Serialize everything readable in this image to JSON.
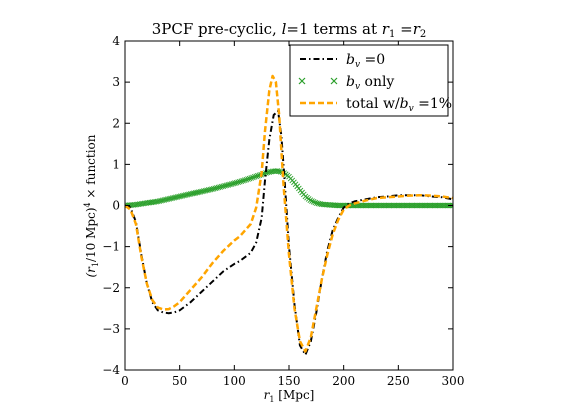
{
  "chart_data": {
    "type": "line",
    "title_prefix": "3PCF pre-cyclic, ",
    "title_math": "l",
    "title_mid": "=1 terms at ",
    "title_math2": "r",
    "title_sub2": "1",
    "title_eq": " =",
    "title_math3": "r",
    "title_sub3": "2",
    "xlabel_math": "r",
    "xlabel_sub": "1",
    "xlabel_rest": " [Mpc]",
    "ylabel_math": "(r",
    "ylabel_sub": "1",
    "ylabel_mid": "/10  Mpc)",
    "ylabel_sup": "4",
    "ylabel_rest": " × function",
    "xlim": [
      0,
      300
    ],
    "ylim": [
      -4,
      4
    ],
    "xticks": [
      0,
      50,
      100,
      150,
      200,
      250,
      300
    ],
    "yticks": [
      -4,
      -3,
      -2,
      -1,
      0,
      1,
      2,
      3,
      4
    ],
    "grid": false,
    "legend_position": "top-right",
    "colors": {
      "bv0": "#000000",
      "bv_only": "#2ca02c",
      "total": "#ffa500"
    },
    "legend": [
      {
        "key": "bv0",
        "math": "b",
        "sub": "v",
        "rest": " =0",
        "style": "dashdot"
      },
      {
        "key": "bv_only",
        "math": "b",
        "sub": "v",
        "rest": " only",
        "style": "xmarker"
      },
      {
        "key": "total",
        "prefix": "total w/",
        "math": "b",
        "sub": "v",
        "rest": " =1%",
        "style": "dashed"
      }
    ],
    "series": [
      {
        "key": "bv0",
        "x": [
          0,
          5,
          10,
          15,
          20,
          25,
          30,
          35,
          40,
          45,
          50,
          55,
          60,
          70,
          80,
          90,
          100,
          105,
          110,
          115,
          120,
          125,
          128,
          132,
          136,
          140,
          143,
          146,
          150,
          155,
          160,
          165,
          170,
          175,
          180,
          185,
          190,
          195,
          200,
          205,
          210,
          220,
          230,
          240,
          250,
          260,
          270,
          280,
          290,
          300
        ],
        "y": [
          0.0,
          -0.05,
          -0.4,
          -1.2,
          -1.9,
          -2.35,
          -2.55,
          -2.6,
          -2.62,
          -2.6,
          -2.55,
          -2.45,
          -2.35,
          -2.1,
          -1.85,
          -1.6,
          -1.42,
          -1.35,
          -1.25,
          -1.15,
          -0.9,
          -0.3,
          0.6,
          1.6,
          2.2,
          2.3,
          1.7,
          0.6,
          -1.0,
          -2.4,
          -3.4,
          -3.63,
          -3.3,
          -2.6,
          -1.8,
          -1.1,
          -0.6,
          -0.3,
          -0.05,
          0.05,
          0.1,
          0.15,
          0.2,
          0.22,
          0.25,
          0.25,
          0.25,
          0.22,
          0.2,
          0.15
        ]
      },
      {
        "key": "bv_only",
        "x": [
          0,
          10,
          20,
          30,
          40,
          50,
          60,
          70,
          80,
          90,
          100,
          110,
          120,
          130,
          135,
          140,
          145,
          150,
          155,
          160,
          165,
          170,
          175,
          180,
          185,
          190,
          195,
          200,
          210,
          220,
          230,
          240,
          250,
          260,
          270,
          280,
          290,
          300
        ],
        "y": [
          0.0,
          0.02,
          0.06,
          0.1,
          0.16,
          0.22,
          0.28,
          0.34,
          0.4,
          0.47,
          0.54,
          0.62,
          0.71,
          0.8,
          0.83,
          0.84,
          0.8,
          0.7,
          0.55,
          0.38,
          0.22,
          0.12,
          0.06,
          0.03,
          0.02,
          0.01,
          0.0,
          0.0,
          0.0,
          0.0,
          0.0,
          0.0,
          0.0,
          0.0,
          0.0,
          0.0,
          0.0,
          0.0
        ]
      },
      {
        "key": "total",
        "x": [
          0,
          5,
          10,
          15,
          20,
          25,
          30,
          35,
          40,
          45,
          50,
          55,
          60,
          70,
          80,
          90,
          100,
          105,
          110,
          115,
          120,
          125,
          128,
          132,
          135,
          138,
          141,
          145,
          150,
          155,
          160,
          165,
          170,
          175,
          180,
          185,
          190,
          195,
          200,
          205,
          210,
          220,
          230,
          240,
          250,
          260,
          270,
          280,
          290,
          300
        ],
        "y": [
          0.0,
          -0.1,
          -0.45,
          -1.25,
          -1.9,
          -2.3,
          -2.48,
          -2.53,
          -2.52,
          -2.45,
          -2.35,
          -2.2,
          -2.05,
          -1.75,
          -1.4,
          -1.1,
          -0.85,
          -0.75,
          -0.6,
          -0.45,
          -0.05,
          0.8,
          1.8,
          2.8,
          3.15,
          3.0,
          2.2,
          0.5,
          -1.2,
          -2.5,
          -3.3,
          -3.55,
          -3.2,
          -2.5,
          -1.8,
          -1.2,
          -0.7,
          -0.35,
          -0.1,
          0.0,
          0.05,
          0.12,
          0.18,
          0.2,
          0.22,
          0.24,
          0.25,
          0.24,
          0.22,
          0.18
        ]
      }
    ]
  }
}
